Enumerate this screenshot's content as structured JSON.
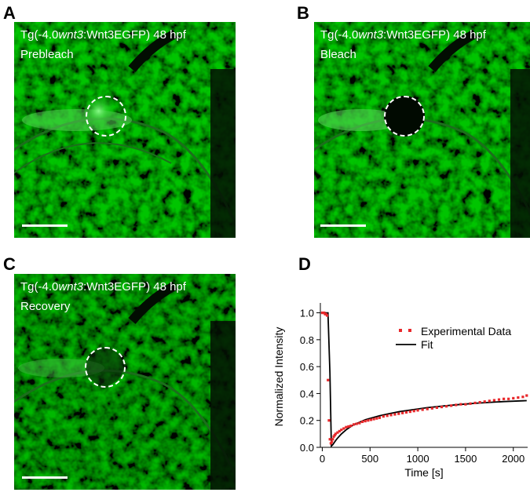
{
  "panels": [
    {
      "letter": "A",
      "caption_prefix": "Tg(-4.0",
      "caption_gene": "wnt3",
      "caption_suffix": ":Wnt3EGFP) 48 hpf",
      "state": "Prebleach"
    },
    {
      "letter": "B",
      "caption_prefix": "Tg(-4.0",
      "caption_gene": "wnt3",
      "caption_suffix": ":Wnt3EGFP) 48 hpf",
      "state": "Bleach"
    },
    {
      "letter": "C",
      "caption_prefix": "Tg(-4.0",
      "caption_gene": "wnt3",
      "caption_suffix": ":Wnt3EGFP) 48 hpf",
      "state": "Recovery"
    }
  ],
  "chart_panel_letter": "D",
  "colors": {
    "fluorescence": "#2fa82f",
    "experimental": "#e8282b",
    "fit": "#000000"
  },
  "chart_data": {
    "type": "line",
    "xlabel": "Time [s]",
    "ylabel": "Normalized Intensity",
    "xlim": [
      -20,
      2150
    ],
    "ylim": [
      0,
      1.05
    ],
    "xticks": [
      0,
      500,
      1000,
      1500,
      2000
    ],
    "yticks": [
      0.0,
      0.2,
      0.4,
      0.6,
      0.8,
      1.0
    ],
    "xtick_labels": [
      "0",
      "500",
      "1000",
      "1500",
      "2000"
    ],
    "ytick_labels": [
      "0.0",
      "0.2",
      "0.4",
      "0.6",
      "0.8",
      "1.0"
    ],
    "legend_position": "top-right",
    "series": [
      {
        "name": "Experimental Data",
        "style": "dotted-markers",
        "x": [
          0,
          10,
          20,
          30,
          40,
          50,
          60,
          70,
          80,
          90,
          100,
          110,
          120,
          130,
          140,
          160,
          180,
          200,
          225,
          250,
          275,
          300,
          330,
          360,
          390,
          420,
          450,
          480,
          510,
          540,
          570,
          600,
          640,
          680,
          720,
          760,
          800,
          840,
          880,
          920,
          960,
          1000,
          1050,
          1100,
          1150,
          1200,
          1250,
          1300,
          1350,
          1400,
          1450,
          1500,
          1550,
          1600,
          1650,
          1700,
          1750,
          1800,
          1850,
          1900,
          1950,
          2000,
          2050,
          2100,
          2140
        ],
        "y": [
          1.0,
          1.0,
          1.0,
          0.99,
          0.99,
          0.98,
          0.5,
          0.2,
          0.06,
          0.03,
          0.04,
          0.06,
          0.08,
          0.09,
          0.1,
          0.11,
          0.12,
          0.13,
          0.14,
          0.15,
          0.155,
          0.16,
          0.17,
          0.175,
          0.18,
          0.19,
          0.195,
          0.2,
          0.205,
          0.21,
          0.215,
          0.22,
          0.23,
          0.235,
          0.24,
          0.245,
          0.25,
          0.255,
          0.26,
          0.265,
          0.27,
          0.275,
          0.28,
          0.285,
          0.29,
          0.295,
          0.3,
          0.305,
          0.31,
          0.315,
          0.32,
          0.32,
          0.325,
          0.33,
          0.335,
          0.34,
          0.345,
          0.35,
          0.355,
          0.36,
          0.36,
          0.365,
          0.37,
          0.375,
          0.385
        ]
      },
      {
        "name": "Fit",
        "style": "line",
        "x": [
          0,
          60,
          80,
          95,
          110,
          130,
          150,
          175,
          200,
          250,
          300,
          350,
          400,
          450,
          500,
          600,
          700,
          800,
          900,
          1000,
          1100,
          1200,
          1300,
          1400,
          1500,
          1600,
          1700,
          1800,
          1900,
          2000,
          2100,
          2140
        ],
        "y": [
          1.0,
          1.0,
          0.55,
          0.01,
          0.02,
          0.04,
          0.06,
          0.08,
          0.1,
          0.13,
          0.155,
          0.175,
          0.19,
          0.205,
          0.215,
          0.235,
          0.25,
          0.265,
          0.275,
          0.285,
          0.295,
          0.302,
          0.31,
          0.316,
          0.322,
          0.327,
          0.332,
          0.336,
          0.34,
          0.343,
          0.346,
          0.347
        ]
      }
    ]
  }
}
